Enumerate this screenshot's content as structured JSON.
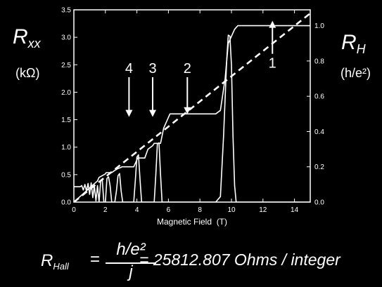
{
  "colors": {
    "background": "#000000",
    "foreground": "#ffffff"
  },
  "labels": {
    "rxx_main": "R",
    "rxx_sub": "xx",
    "rxx_unit": "(kΩ)",
    "rh_main": "R",
    "rh_sub": "H",
    "rh_unit": "(h/e²)"
  },
  "formula": {
    "lhs_main": "R",
    "lhs_sub": "Hall",
    "equals": "=",
    "numerator": "h/e²",
    "denominator": "j",
    "rhs": "= 25812.807 Ohms / integer"
  },
  "chart_data": {
    "type": "line",
    "title": "",
    "xlabel": "Magnetic Field  (T)",
    "ylabel_left": "",
    "ylabel_right": "",
    "xlim": [
      0,
      15
    ],
    "ylim_left": [
      0,
      3.5
    ],
    "ylim_right": [
      0,
      1.09
    ],
    "x_ticks": [
      "0",
      "2",
      "4",
      "6",
      "8",
      "10",
      "12",
      "14"
    ],
    "y_left_ticks": [
      "0.0",
      "0.5",
      "1.0",
      "1.5",
      "2.0",
      "2.5",
      "3.0",
      "3.5"
    ],
    "y_right_ticks": [
      "0.0",
      "0.2",
      "0.4",
      "0.6",
      "0.8",
      "1.0"
    ],
    "grid": false,
    "series": [
      {
        "axis": "right",
        "style": "solid",
        "x": [
          0,
          1.5,
          1.6,
          1.8,
          2.0,
          2.05,
          2.4,
          2.6,
          2.8,
          3.0,
          3.05,
          3.8,
          3.9,
          4.0,
          4.05,
          4.5,
          4.7,
          5.0,
          5.1,
          5.5,
          5.7,
          6.0,
          6.1,
          9.0,
          9.3,
          9.6,
          9.8,
          10.2,
          10.4,
          10.6,
          15
        ],
        "y": [
          0,
          0.12,
          0.14,
          0.15,
          0.16,
          0.167,
          0.167,
          0.18,
          0.19,
          0.197,
          0.2,
          0.2,
          0.22,
          0.24,
          0.25,
          0.25,
          0.3,
          0.32,
          0.333,
          0.333,
          0.42,
          0.48,
          0.5,
          0.5,
          0.52,
          0.7,
          0.9,
          0.98,
          1.0,
          1.0,
          1.0
        ]
      },
      {
        "axis": "right",
        "style": "dashed",
        "x": [
          0,
          15
        ],
        "y": [
          0,
          1.07
        ]
      },
      {
        "axis": "left",
        "style": "solid",
        "x": [
          0,
          0.4,
          0.5,
          0.6,
          0.7,
          0.8,
          0.9,
          1.0,
          1.1,
          1.2,
          1.3,
          1.4,
          1.5,
          1.6,
          1.7,
          1.8,
          1.9,
          2.0,
          2.1,
          2.2,
          2.3,
          2.4,
          2.5,
          2.6,
          2.7,
          2.8,
          2.9,
          3.0,
          3.1,
          3.2,
          3.6,
          3.8,
          3.9,
          4.0,
          4.1,
          4.2,
          4.3,
          4.4,
          4.5,
          4.6,
          4.9,
          5.1,
          5.2,
          5.3,
          5.4,
          5.5,
          5.6,
          5.7,
          5.8,
          6.0,
          9.0,
          9.3,
          9.5,
          9.7,
          9.8,
          9.9,
          10.0,
          10.1,
          10.2,
          10.3,
          10.6,
          11.0,
          15
        ],
        "y": [
          0.28,
          0.28,
          0.3,
          0.22,
          0.32,
          0.2,
          0.34,
          0.14,
          0.35,
          0.08,
          0.3,
          0.02,
          0.3,
          0.0,
          0.38,
          0.42,
          0.0,
          0.0,
          0.43,
          0.46,
          0.3,
          0.0,
          0.0,
          0.0,
          0.2,
          0.48,
          0.52,
          0.2,
          0.0,
          0.0,
          0.0,
          0.0,
          0.4,
          0.82,
          0.86,
          0.4,
          0.0,
          0.0,
          0.0,
          0.0,
          0.0,
          0.0,
          0.5,
          1.06,
          1.08,
          0.5,
          0.0,
          0.0,
          0.0,
          0.0,
          0.0,
          0.1,
          1.2,
          2.6,
          3.04,
          3.02,
          2.5,
          1.2,
          0.3,
          0.0,
          0.0,
          0.0,
          0.0
        ]
      }
    ],
    "annotations": [
      {
        "text": "1",
        "x": 12.6,
        "y_top": 2.75,
        "y_tip": 3.3,
        "direction": "up"
      },
      {
        "text": "2",
        "x": 7.2,
        "y_top": 2.3,
        "y_tip": 1.6,
        "direction": "down"
      },
      {
        "text": "3",
        "x": 5.0,
        "y_top": 2.3,
        "y_tip": 1.55,
        "direction": "down"
      },
      {
        "text": "4",
        "x": 3.5,
        "y_top": 2.3,
        "y_tip": 1.55,
        "direction": "down"
      }
    ]
  }
}
